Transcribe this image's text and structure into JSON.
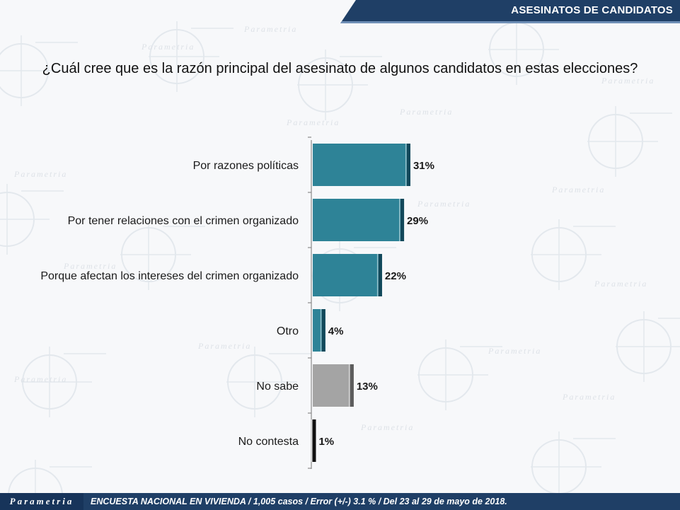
{
  "header": {
    "section_title": "ASESINATOS DE CANDIDATOS"
  },
  "question": "¿Cuál cree que es la razón principal del asesinato de algunos candidatos en estas elecciones?",
  "footer": {
    "brand": "Parametria",
    "note": "ENCUESTA NACIONAL EN VIVIENDA / 1,005 casos / Error (+/-) 3.1 % / Del 23 al 29 de mayo de 2018."
  },
  "watermark": {
    "text": "Parametria"
  },
  "colors": {
    "bar_main": "#2e8397",
    "bar_main_edge": "#12485a",
    "bar_gray": "#a4a4a4",
    "bar_gray_edge": "#5c5c5c",
    "bar_dark": "#2a2a2a",
    "header_bg": "#1f3f66"
  },
  "chart_data": {
    "type": "bar",
    "orientation": "horizontal",
    "categories": [
      "Por razones políticas",
      "Por tener relaciones con el crimen organizado",
      "Porque afectan los intereses del crimen organizado",
      "Otro",
      "No sabe",
      "No contesta"
    ],
    "values": [
      31,
      29,
      22,
      4,
      13,
      1
    ],
    "value_labels": [
      "31%",
      "29%",
      "22%",
      "4%",
      "13%",
      "1%"
    ],
    "bar_colors": [
      "main",
      "main",
      "main",
      "main",
      "gray",
      "dark"
    ],
    "xlim": [
      0,
      100
    ],
    "grid": false
  }
}
